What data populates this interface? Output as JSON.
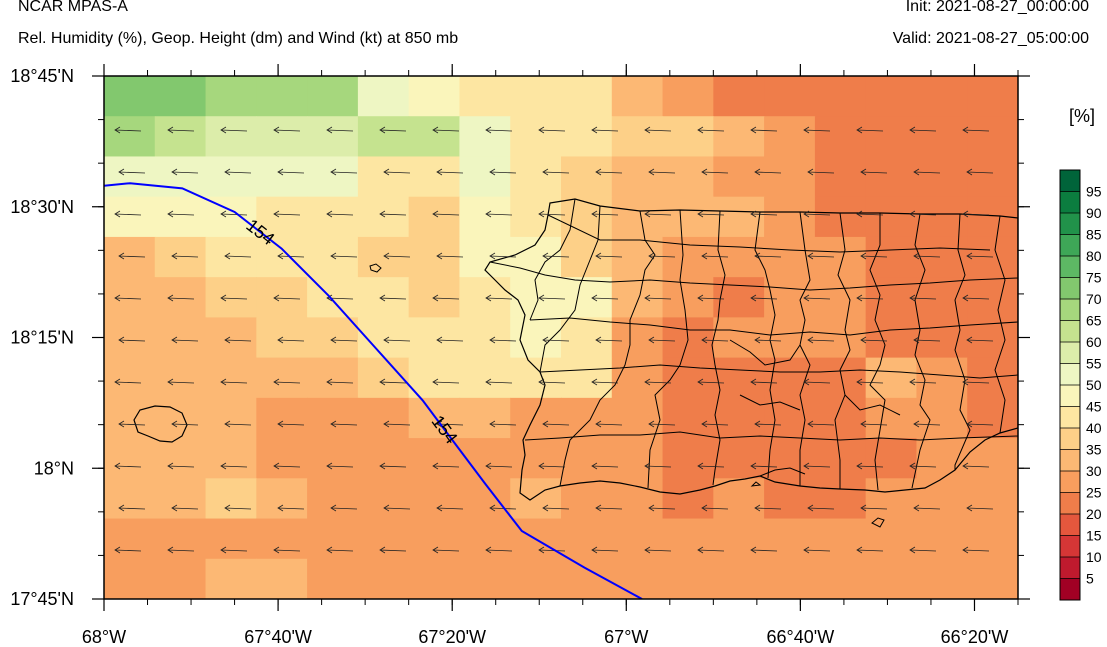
{
  "header": {
    "title": "NCAR MPAS-A",
    "subtitle": "Rel. Humidity (%), Geop. Height (dm) and Wind (kt) at 850 mb",
    "init": "Init: 2021-08-27_00:00:00",
    "valid": "Valid: 2021-08-27_05:00:00"
  },
  "map": {
    "lon_range": [
      -68.0,
      -66.25
    ],
    "lat_range": [
      17.75,
      18.75
    ],
    "lon_ticks": [
      {
        "value": -68.0,
        "label": "68°W"
      },
      {
        "value": -67.6667,
        "label": "67°40'W"
      },
      {
        "value": -67.3333,
        "label": "67°20'W"
      },
      {
        "value": -67.0,
        "label": "67°W"
      },
      {
        "value": -66.6667,
        "label": "66°40'W"
      },
      {
        "value": -66.3333,
        "label": "66°20'W"
      }
    ],
    "lat_ticks": [
      {
        "value": 18.75,
        "label": "18°45'N"
      },
      {
        "value": 18.5,
        "label": "18°30'N"
      },
      {
        "value": 18.25,
        "label": "18°15'N"
      },
      {
        "value": 18.0,
        "label": "18°N"
      },
      {
        "value": 17.75,
        "label": "17°45'N"
      }
    ],
    "rh_grid_rows_top_to_bottom": [
      [
        72,
        72,
        66,
        66,
        66,
        52,
        48,
        40,
        40,
        40,
        30,
        25,
        20,
        20,
        20,
        20,
        20,
        20
      ],
      [
        66,
        62,
        55,
        55,
        55,
        62,
        62,
        52,
        40,
        40,
        35,
        35,
        30,
        25,
        20,
        20,
        20,
        20
      ],
      [
        52,
        52,
        50,
        52,
        50,
        40,
        40,
        50,
        40,
        35,
        30,
        30,
        25,
        25,
        20,
        20,
        20,
        20
      ],
      [
        45,
        45,
        45,
        42,
        42,
        40,
        38,
        46,
        40,
        35,
        30,
        30,
        30,
        25,
        20,
        20,
        20,
        20
      ],
      [
        30,
        35,
        40,
        40,
        40,
        38,
        38,
        46,
        46,
        35,
        30,
        25,
        25,
        25,
        25,
        20,
        20,
        20
      ],
      [
        30,
        30,
        38,
        38,
        40,
        40,
        38,
        42,
        46,
        45,
        30,
        25,
        20,
        25,
        25,
        20,
        20,
        20
      ],
      [
        30,
        30,
        30,
        35,
        38,
        40,
        42,
        42,
        45,
        42,
        25,
        20,
        25,
        25,
        25,
        20,
        20,
        20
      ],
      [
        30,
        30,
        30,
        30,
        30,
        35,
        40,
        40,
        40,
        40,
        25,
        20,
        20,
        20,
        20,
        30,
        25,
        20
      ],
      [
        30,
        30,
        30,
        25,
        25,
        25,
        30,
        30,
        25,
        25,
        25,
        20,
        20,
        20,
        20,
        25,
        25,
        20
      ],
      [
        30,
        30,
        30,
        25,
        25,
        25,
        25,
        25,
        25,
        25,
        25,
        20,
        20,
        20,
        20,
        20,
        25,
        25
      ],
      [
        30,
        30,
        35,
        30,
        25,
        25,
        25,
        25,
        30,
        25,
        25,
        20,
        25,
        20,
        20,
        25,
        25,
        25
      ],
      [
        25,
        25,
        25,
        25,
        25,
        25,
        25,
        25,
        25,
        25,
        25,
        25,
        25,
        25,
        25,
        25,
        25,
        25
      ],
      [
        25,
        25,
        30,
        30,
        25,
        25,
        25,
        25,
        25,
        25,
        25,
        25,
        25,
        25,
        25,
        25,
        25,
        25
      ]
    ],
    "rh_grid_lon_edges": [
      -68.0,
      -67.9,
      -67.8,
      -67.7,
      -67.6,
      -67.5,
      -67.4,
      -67.3,
      -67.2,
      -67.1,
      -67.0,
      -66.9,
      -66.8,
      -66.7,
      -66.6,
      -66.5,
      -66.4,
      -66.3,
      -66.25
    ],
    "rh_grid_lat_edges_top_to_bottom": [
      18.75,
      18.7,
      18.6,
      18.5,
      18.4,
      18.3,
      18.2,
      18.1,
      18.0,
      17.9,
      17.85,
      17.8,
      17.75,
      17.75
    ],
    "height_contour": {
      "value_dm": 154,
      "color": "#0000ff",
      "labels": [
        "154",
        "154"
      ],
      "points_lonlat": [
        [
          -68.0,
          18.54
        ],
        [
          -67.95,
          18.545
        ],
        [
          -67.85,
          18.535
        ],
        [
          -67.75,
          18.49
        ],
        [
          -67.66,
          18.42
        ],
        [
          -67.57,
          18.33
        ],
        [
          -67.48,
          18.23
        ],
        [
          -67.39,
          18.13
        ],
        [
          -67.33,
          18.05
        ],
        [
          -67.27,
          17.97
        ],
        [
          -67.2,
          17.88
        ],
        [
          -67.08,
          17.81
        ],
        [
          -66.97,
          17.75
        ]
      ]
    },
    "wind_vectors": {
      "direction": "from-east",
      "rows": 11,
      "cols": 17
    }
  },
  "colorbar": {
    "unit": "[%]",
    "labels": [
      "95",
      "90",
      "85",
      "80",
      "75",
      "70",
      "65",
      "60",
      "55",
      "50",
      "45",
      "40",
      "35",
      "30",
      "25",
      "20",
      "15",
      "10",
      "5"
    ],
    "colors_top_to_bottom": [
      "#00643a",
      "#0b7d3f",
      "#21924a",
      "#3ea757",
      "#5db864",
      "#82c86e",
      "#a6d77d",
      "#c5e38f",
      "#dcedaa",
      "#eef6c3",
      "#faf5bb",
      "#fde6a2",
      "#fdd088",
      "#fcb874",
      "#f89e5e",
      "#ef7d4a",
      "#e4573d",
      "#d53636",
      "#bf1a2e",
      "#a10024"
    ]
  }
}
